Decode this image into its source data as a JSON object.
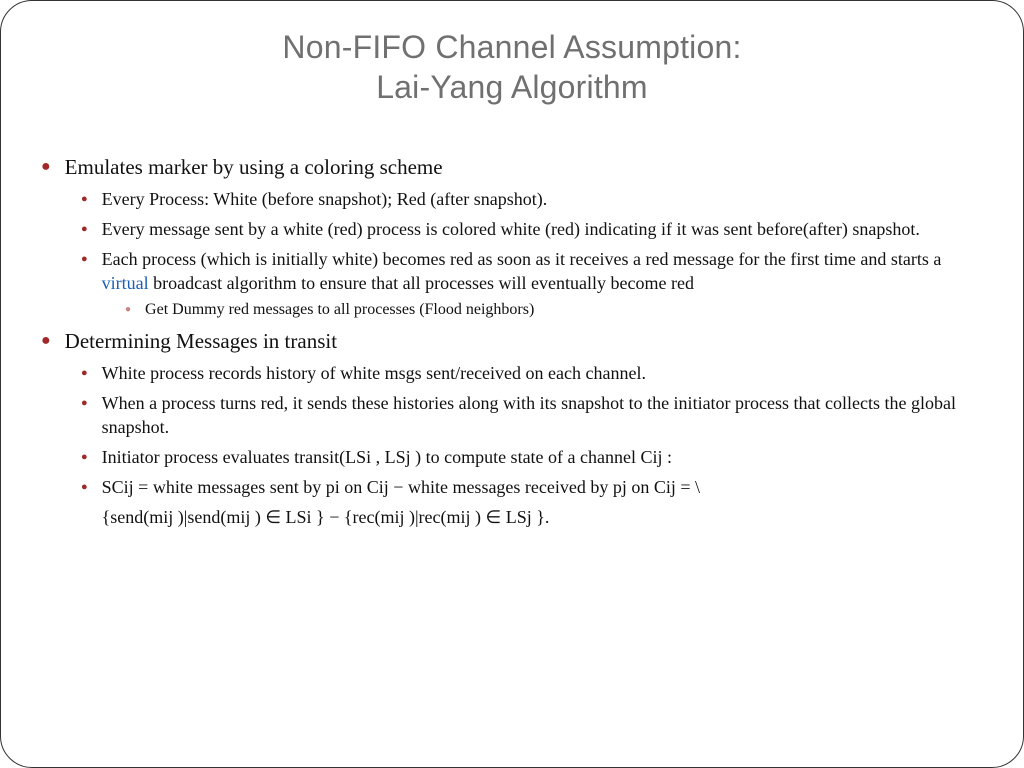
{
  "title_line1": "Non-FIFO Channel Assumption:",
  "title_line2": "Lai-Yang Algorithm",
  "styling": {
    "title_color": "#707070",
    "title_fontsize": 32,
    "title_font": "Trebuchet MS",
    "body_font": "Georgia",
    "bullet_color_primary": "#a02828",
    "bullet_color_tertiary": "#c88080",
    "link_color": "#1a5fb4",
    "lvl1_fontsize": 21,
    "lvl2_fontsize": 18,
    "lvl3_fontsize": 16,
    "border_radius": 32,
    "border_color": "#333333"
  },
  "items": {
    "l1_0": "Emulates marker by using a coloring scheme",
    "l1_0_l2_0": "Every Process: White (before snapshot);  Red (after snapshot).",
    "l1_0_l2_1": "Every message sent by a white (red) process is colored white (red) indicating if it was sent before(after) snapshot.",
    "l1_0_l2_2_a": "Each process (which is initially white) becomes red as soon as it receives a red message for the first time and starts a ",
    "l1_0_l2_2_b": "virtual",
    "l1_0_l2_2_c": " broadcast algorithm to ensure that all processes will eventually become red",
    "l1_0_l2_2_l3_0": "Get Dummy red messages to all processes (Flood neighbors)",
    "l1_1": "Determining Messages in transit",
    "l1_1_l2_0": "White process records history of white msgs sent/received on  each channel.",
    "l1_1_l2_1": "When a process turns red, it sends these histories along with its snapshot to the initiator process that collects the global snapshot.",
    "l1_1_l2_2": "Initiator process evaluates transit(LSi , LSj ) to compute state of a channel Cij :",
    "l1_1_l2_3": "SCij = white messages sent by pi on Cij − white messages received by pj on Cij = \\",
    "l1_1_l2_4": "{send(mij )|send(mij ) ∈ LSi }  −  {rec(mij )|rec(mij ) ∈ LSj }."
  }
}
